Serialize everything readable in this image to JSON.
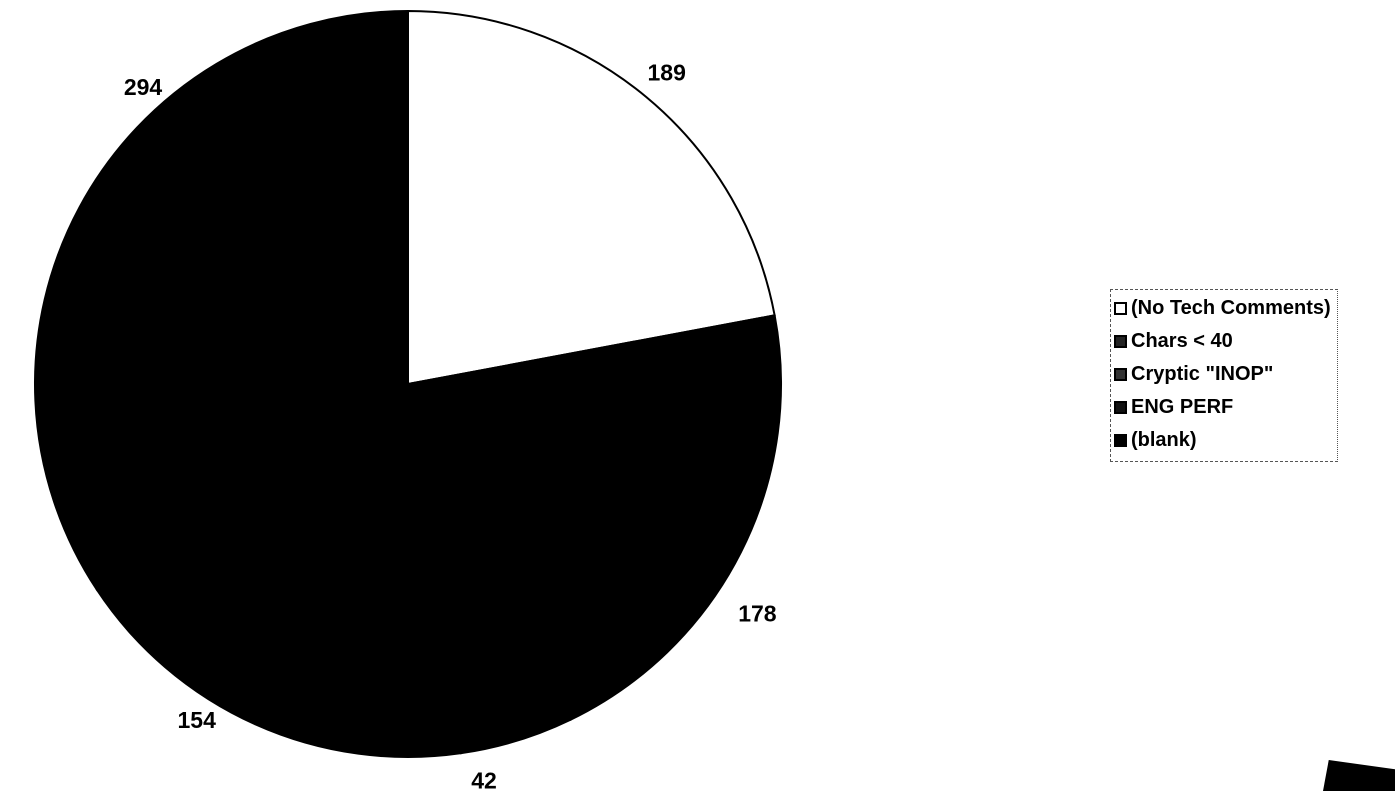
{
  "chart_data": {
    "type": "pie",
    "slices": [
      {
        "label": "(No Tech Comments)",
        "value": 189,
        "value_label": "189",
        "color": "#ffffff"
      },
      {
        "label": "Chars < 40",
        "value": 178,
        "value_label": "178",
        "color": "#000000"
      },
      {
        "label": "Cryptic \"INOP\"",
        "value": 42,
        "value_label": "42",
        "color": "#000000"
      },
      {
        "label": "ENG PERF",
        "value": 154,
        "value_label": "154",
        "color": "#000000"
      },
      {
        "label": "(blank)",
        "value": 294,
        "value_label": "294",
        "color": "#000000"
      }
    ],
    "legend": {
      "position": "right",
      "items": [
        "(No Tech Comments)",
        "Chars < 40",
        "Cryptic \"INOP\"",
        "ENG PERF",
        "(blank)"
      ]
    }
  }
}
